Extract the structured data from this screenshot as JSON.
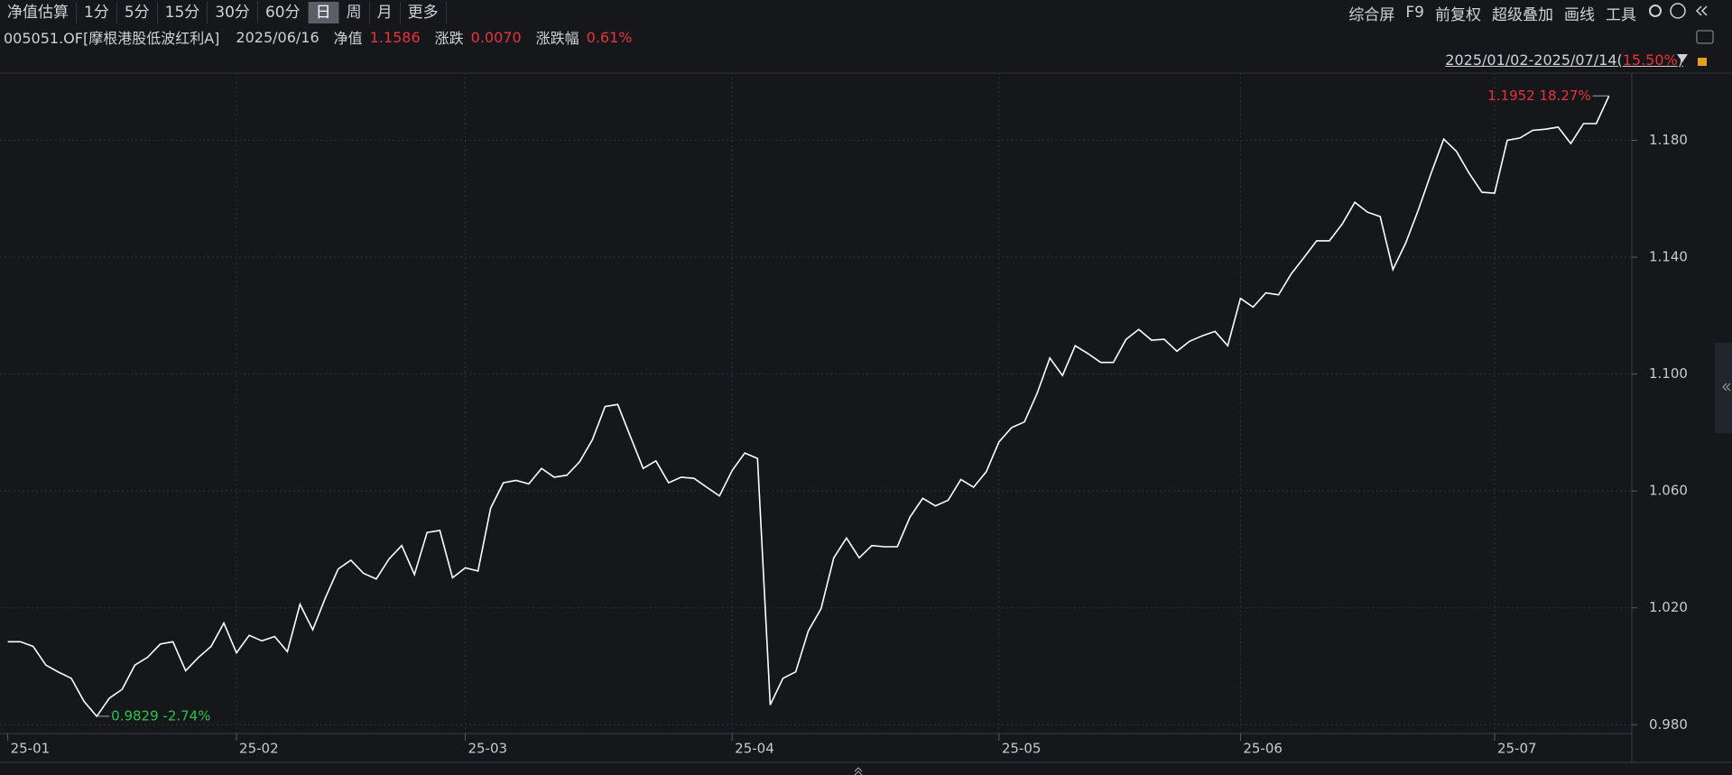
{
  "toolbar": {
    "periods": [
      "净值估算",
      "1分",
      "5分",
      "15分",
      "30分",
      "60分",
      "日",
      "周",
      "月",
      "更多"
    ],
    "selected": 6,
    "tools": [
      "综合屏",
      "F9",
      "前复权",
      "超级叠加",
      "画线",
      "工具"
    ]
  },
  "info": {
    "code": "005051.OF[摩根港股低波红利A]",
    "date": "2025/06/16",
    "nav_label": "净值",
    "nav": "1.1586",
    "change_label": "涨跌",
    "change": "0.0070",
    "pct_label": "涨跌幅",
    "pct": "0.61%"
  },
  "range": {
    "text": "2025/01/02-2025/07/14(",
    "change": "15.50%",
    "close": ")"
  },
  "chart_data": {
    "type": "line",
    "color": "#ffffff",
    "categories": [
      "25-01",
      null,
      null,
      null,
      null,
      null,
      null,
      null,
      null,
      null,
      null,
      null,
      null,
      null,
      null,
      null,
      null,
      null,
      "25-02",
      null,
      null,
      null,
      null,
      null,
      null,
      null,
      null,
      null,
      null,
      null,
      null,
      null,
      null,
      null,
      null,
      null,
      "25-03",
      null,
      null,
      null,
      null,
      null,
      null,
      null,
      null,
      null,
      null,
      null,
      null,
      null,
      null,
      null,
      null,
      null,
      null,
      null,
      null,
      "25-04",
      null,
      null,
      null,
      null,
      null,
      null,
      null,
      null,
      null,
      null,
      null,
      null,
      null,
      null,
      null,
      null,
      null,
      null,
      null,
      null,
      "25-05",
      null,
      null,
      null,
      null,
      null,
      null,
      null,
      null,
      null,
      null,
      null,
      null,
      null,
      null,
      null,
      null,
      null,
      null,
      "25-06",
      null,
      null,
      null,
      null,
      null,
      null,
      null,
      null,
      null,
      null,
      null,
      null,
      null,
      null,
      null,
      null,
      null,
      null,
      null,
      "25-07",
      null,
      null,
      null,
      null,
      null,
      null,
      null,
      null,
      null
    ],
    "values": [
      1.0084,
      1.0084,
      1.0068,
      1.0004,
      0.998,
      0.9959,
      0.988,
      0.9829,
      0.9891,
      0.9921,
      1.0004,
      1.0031,
      1.0076,
      1.0084,
      0.9985,
      1.003,
      1.0068,
      1.0148,
      1.0046,
      1.0106,
      1.0087,
      1.0102,
      1.005,
      1.0212,
      1.0125,
      1.0235,
      1.0333,
      1.0363,
      1.0318,
      1.0299,
      1.0367,
      1.0413,
      1.0314,
      1.0458,
      1.0465,
      1.0303,
      1.0337,
      1.0326,
      1.0541,
      1.0628,
      1.0636,
      1.0624,
      1.0677,
      1.0647,
      1.0654,
      1.07,
      1.0775,
      1.0889,
      1.0896,
      1.0786,
      1.0677,
      1.0703,
      1.0628,
      1.0647,
      1.0643,
      1.0613,
      1.0583,
      1.067,
      1.073,
      1.0711,
      0.9868,
      0.9959,
      0.9981,
      1.0121,
      1.0197,
      1.0371,
      1.0439,
      1.0371,
      1.0413,
      1.0409,
      1.0409,
      1.0511,
      1.0575,
      1.0549,
      1.0568,
      1.0639,
      1.0613,
      1.0666,
      1.0768,
      1.0817,
      1.0836,
      1.0934,
      1.1055,
      1.0995,
      1.1097,
      1.107,
      1.104,
      1.104,
      1.1119,
      1.1153,
      1.1116,
      1.1119,
      1.1078,
      1.1112,
      1.1131,
      1.1146,
      1.1097,
      1.1259,
      1.1229,
      1.1278,
      1.1271,
      1.1343,
      1.1399,
      1.1456,
      1.1456,
      1.1513,
      1.1588,
      1.1554,
      1.1539,
      1.1358,
      1.1448,
      1.1562,
      1.1687,
      1.1804,
      1.1762,
      1.1687,
      1.1622,
      1.1619,
      1.18,
      1.1808,
      1.1834,
      1.1838,
      1.1845,
      1.1789,
      1.1857,
      1.1857,
      1.1952
    ],
    "ylim": [
      0.977,
      1.203
    ],
    "yticks": [
      {
        "value": 0.98,
        "label": "0.980"
      },
      {
        "value": 1.02,
        "label": "1.020"
      },
      {
        "value": 1.06,
        "label": "1.060"
      },
      {
        "value": 1.1,
        "label": "1.100"
      },
      {
        "value": 1.14,
        "label": "1.140"
      },
      {
        "value": 1.18,
        "label": "1.180"
      }
    ],
    "grid": true,
    "max_label": "1.1952 18.27%",
    "max_color": "#e8343a",
    "min_label": "0.9829 -2.74%",
    "min_color": "#2dc24a"
  }
}
